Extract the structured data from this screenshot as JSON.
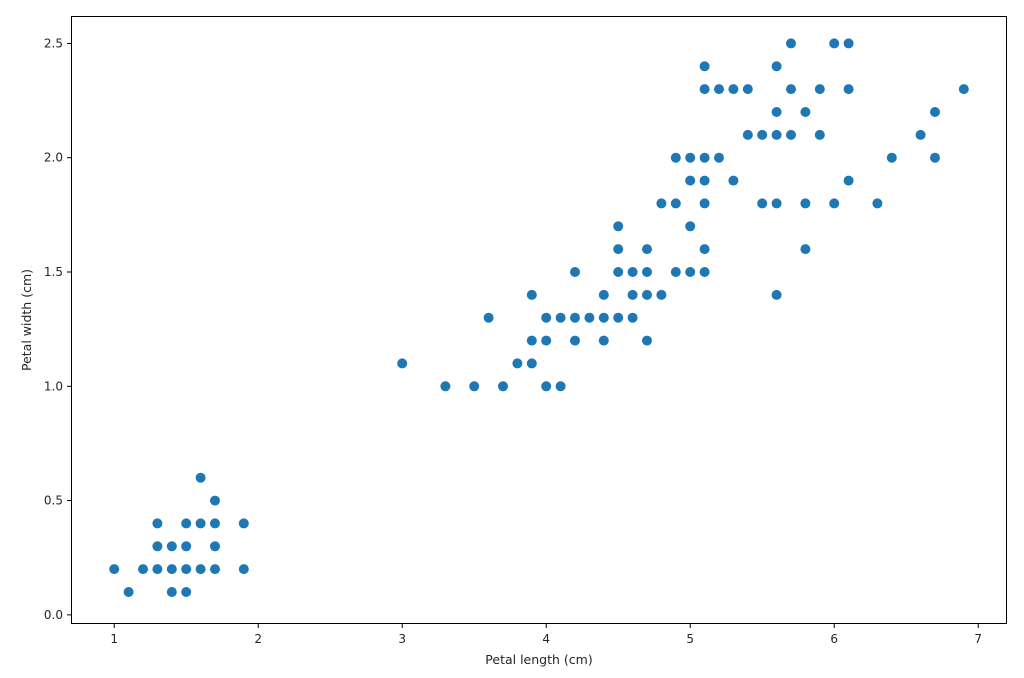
{
  "chart_data": {
    "type": "scatter",
    "title": "",
    "xlabel": "Petal length (cm)",
    "ylabel": "Petal width (cm)",
    "xlim": [
      0.7,
      7.2
    ],
    "ylim": [
      -0.04,
      2.62
    ],
    "xticks": [
      1,
      2,
      3,
      4,
      5,
      6,
      7
    ],
    "xtick_labels": [
      "1",
      "2",
      "3",
      "4",
      "5",
      "6",
      "7"
    ],
    "yticks": [
      0.0,
      0.5,
      1.0,
      1.5,
      2.0,
      2.5
    ],
    "ytick_labels": [
      "0.0",
      "0.5",
      "1.0",
      "1.5",
      "2.0",
      "2.5"
    ],
    "grid": false,
    "legend": "none",
    "marker_color": "#1f77b4",
    "points": [
      [
        1.0,
        0.2
      ],
      [
        1.1,
        0.1
      ],
      [
        1.2,
        0.2
      ],
      [
        1.3,
        0.2
      ],
      [
        1.3,
        0.3
      ],
      [
        1.3,
        0.4
      ],
      [
        1.4,
        0.1
      ],
      [
        1.4,
        0.2
      ],
      [
        1.4,
        0.3
      ],
      [
        1.5,
        0.1
      ],
      [
        1.5,
        0.2
      ],
      [
        1.5,
        0.3
      ],
      [
        1.5,
        0.4
      ],
      [
        1.6,
        0.2
      ],
      [
        1.6,
        0.4
      ],
      [
        1.6,
        0.6
      ],
      [
        1.7,
        0.2
      ],
      [
        1.7,
        0.3
      ],
      [
        1.7,
        0.4
      ],
      [
        1.7,
        0.5
      ],
      [
        1.9,
        0.2
      ],
      [
        1.9,
        0.4
      ],
      [
        3.0,
        1.1
      ],
      [
        3.3,
        1.0
      ],
      [
        3.5,
        1.0
      ],
      [
        3.6,
        1.3
      ],
      [
        3.7,
        1.0
      ],
      [
        3.8,
        1.1
      ],
      [
        3.9,
        1.1
      ],
      [
        3.9,
        1.2
      ],
      [
        3.9,
        1.4
      ],
      [
        4.0,
        1.0
      ],
      [
        4.0,
        1.2
      ],
      [
        4.0,
        1.3
      ],
      [
        4.1,
        1.0
      ],
      [
        4.1,
        1.3
      ],
      [
        4.2,
        1.2
      ],
      [
        4.2,
        1.3
      ],
      [
        4.2,
        1.5
      ],
      [
        4.3,
        1.3
      ],
      [
        4.4,
        1.2
      ],
      [
        4.4,
        1.3
      ],
      [
        4.4,
        1.4
      ],
      [
        4.5,
        1.3
      ],
      [
        4.5,
        1.5
      ],
      [
        4.5,
        1.6
      ],
      [
        4.5,
        1.7
      ],
      [
        4.6,
        1.3
      ],
      [
        4.6,
        1.4
      ],
      [
        4.6,
        1.5
      ],
      [
        4.7,
        1.2
      ],
      [
        4.7,
        1.4
      ],
      [
        4.7,
        1.5
      ],
      [
        4.7,
        1.6
      ],
      [
        4.8,
        1.4
      ],
      [
        4.8,
        1.8
      ],
      [
        4.9,
        1.5
      ],
      [
        4.9,
        1.8
      ],
      [
        4.9,
        2.0
      ],
      [
        5.0,
        1.5
      ],
      [
        5.0,
        1.7
      ],
      [
        5.0,
        1.9
      ],
      [
        5.0,
        2.0
      ],
      [
        5.1,
        1.5
      ],
      [
        5.1,
        1.6
      ],
      [
        5.1,
        1.8
      ],
      [
        5.1,
        1.9
      ],
      [
        5.1,
        2.0
      ],
      [
        5.1,
        2.3
      ],
      [
        5.1,
        2.4
      ],
      [
        5.2,
        2.0
      ],
      [
        5.2,
        2.3
      ],
      [
        5.3,
        1.9
      ],
      [
        5.3,
        2.3
      ],
      [
        5.4,
        2.1
      ],
      [
        5.4,
        2.3
      ],
      [
        5.5,
        1.8
      ],
      [
        5.5,
        2.1
      ],
      [
        5.6,
        1.4
      ],
      [
        5.6,
        1.8
      ],
      [
        5.6,
        2.1
      ],
      [
        5.6,
        2.2
      ],
      [
        5.6,
        2.4
      ],
      [
        5.7,
        2.1
      ],
      [
        5.7,
        2.3
      ],
      [
        5.7,
        2.5
      ],
      [
        5.8,
        1.6
      ],
      [
        5.8,
        1.8
      ],
      [
        5.8,
        2.2
      ],
      [
        5.9,
        2.1
      ],
      [
        5.9,
        2.3
      ],
      [
        6.0,
        1.8
      ],
      [
        6.0,
        2.5
      ],
      [
        6.1,
        1.9
      ],
      [
        6.1,
        2.3
      ],
      [
        6.1,
        2.5
      ],
      [
        6.3,
        1.8
      ],
      [
        6.4,
        2.0
      ],
      [
        6.6,
        2.1
      ],
      [
        6.7,
        2.0
      ],
      [
        6.7,
        2.2
      ],
      [
        6.9,
        2.3
      ]
    ]
  }
}
